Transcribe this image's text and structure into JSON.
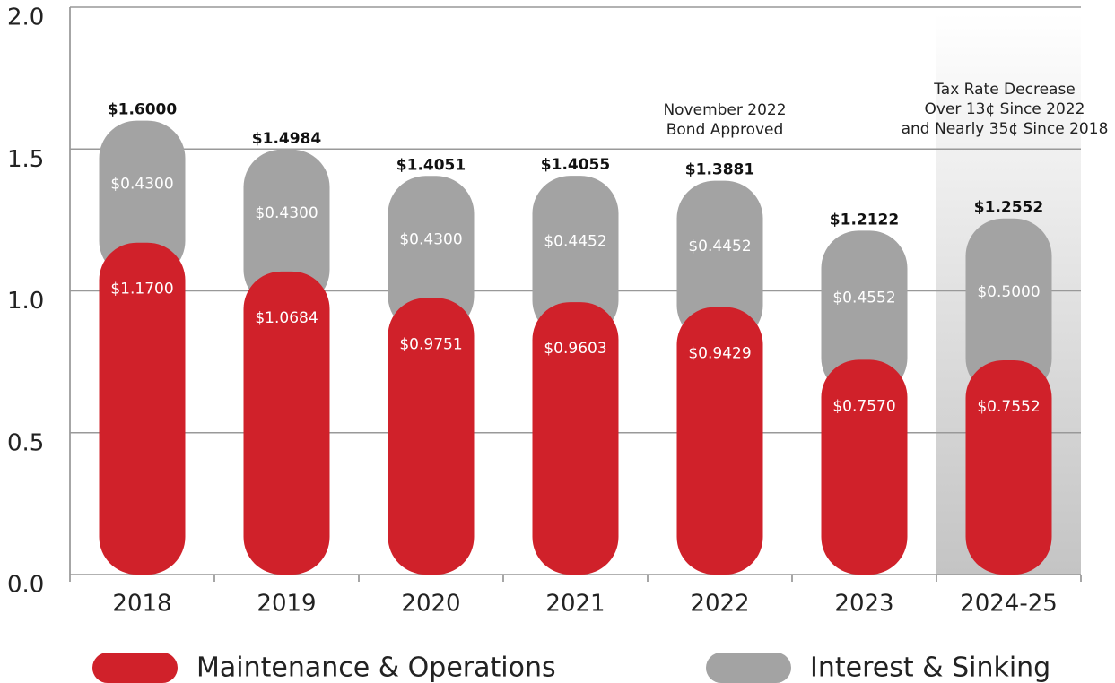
{
  "chart_data": {
    "type": "stacked_bar",
    "categories": [
      "2018",
      "2019",
      "2020",
      "2021",
      "2022",
      "2023",
      "2024-25"
    ],
    "series": [
      {
        "name": "Maintenance & Operations",
        "color": "#d0212a",
        "values": [
          1.17,
          1.0684,
          0.9751,
          0.9603,
          0.9429,
          0.757,
          0.7552
        ],
        "value_labels": [
          "$1.1700",
          "$1.0684",
          "$0.9751",
          "$0.9603",
          "$0.9429",
          "$0.7570",
          "$0.7552"
        ]
      },
      {
        "name": "Interest & Sinking",
        "color": "#a3a3a3",
        "values": [
          0.43,
          0.43,
          0.43,
          0.4452,
          0.4452,
          0.4552,
          0.5
        ],
        "value_labels": [
          "$0.4300",
          "$0.4300",
          "$0.4300",
          "$0.4452",
          "$0.4452",
          "$0.4552",
          "$0.5000"
        ]
      }
    ],
    "total_labels": [
      "$1.6000",
      "$1.4984",
      "$1.4051",
      "$1.4055",
      "$1.3881",
      "$1.2122",
      "$1.2552"
    ],
    "ylim": [
      0,
      2
    ],
    "yticks": [
      {
        "value": 0,
        "label": "0.0"
      },
      {
        "value": 0.5,
        "label": "0.5"
      },
      {
        "value": 1,
        "label": "1.0"
      },
      {
        "value": 1.5,
        "label": "1.5"
      },
      {
        "value": 2,
        "label": "2.0"
      }
    ],
    "grid": true,
    "annotations": [
      {
        "lines": [
          "November 2022",
          "Bond Approved"
        ]
      },
      {
        "lines": [
          "Tax Rate Decrease",
          "Over 13¢ Since 2022",
          "and Nearly 35¢ Since 2018"
        ]
      }
    ]
  }
}
